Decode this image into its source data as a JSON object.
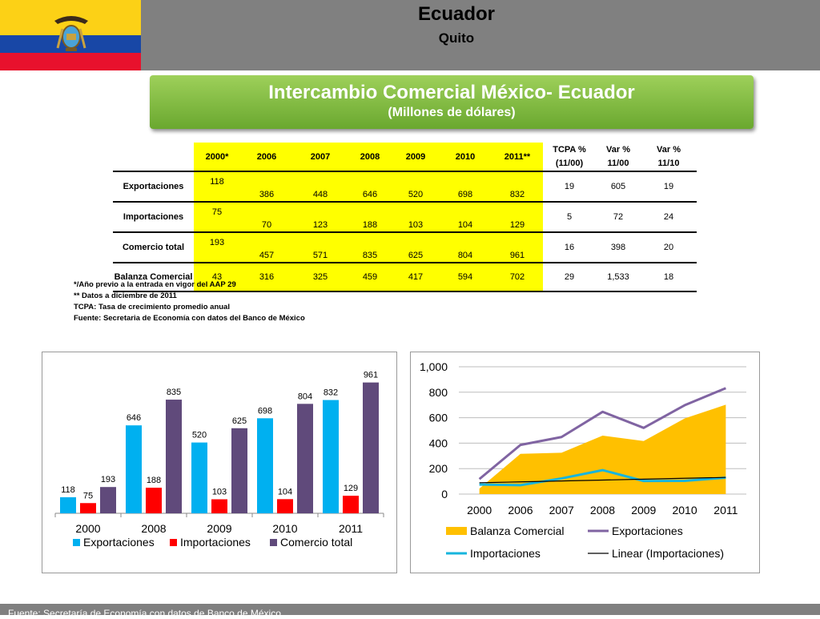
{
  "header": {
    "title": "Ecuador",
    "subtitle": "Quito",
    "flag_colors": [
      "#FCD116",
      "#1847A6",
      "#E8112D"
    ]
  },
  "banner": {
    "title": "Intercambio Comercial México- Ecuador",
    "subtitle": "(Millones de dólares)"
  },
  "table": {
    "years": [
      "2000*",
      "2006",
      "2007",
      "2008",
      "2009",
      "2010",
      "2011**"
    ],
    "rates": [
      {
        "line1": "TCPA %",
        "line2": "(11/00)"
      },
      {
        "line1": "Var %",
        "line2": "11/00"
      },
      {
        "line1": "Var %",
        "line2": "11/10"
      }
    ],
    "rows": [
      {
        "label": "Exportaciones",
        "values": [
          "118",
          "386",
          "448",
          "646",
          "520",
          "698",
          "832"
        ],
        "rates": [
          "19",
          "605",
          "19"
        ]
      },
      {
        "label": "Importaciones",
        "values": [
          "75",
          "70",
          "123",
          "188",
          "103",
          "104",
          "129"
        ],
        "rates": [
          "5",
          "72",
          "24"
        ]
      },
      {
        "label": "Comercio total",
        "values": [
          "193",
          "457",
          "571",
          "835",
          "625",
          "804",
          "961"
        ],
        "rates": [
          "16",
          "398",
          "20"
        ]
      },
      {
        "label": "Balanza Comercial",
        "values": [
          "43",
          "316",
          "325",
          "459",
          "417",
          "594",
          "702"
        ],
        "rates": [
          "29",
          "1,533",
          "18"
        ]
      }
    ]
  },
  "notes": [
    "*/Año previo a la entrada en vigor del AAP 29",
    "** Datos a diciembre de 2011",
    "TCPA: Tasa de crecimiento promedio anual",
    "Fuente: Secretaria de Economía con datos del Banco de México"
  ],
  "footer": "Fuente: Secretaría de Economía con datos de Banco de México",
  "chart_data": [
    {
      "type": "bar",
      "categories": [
        "2000",
        "2008",
        "2009",
        "2010",
        "2011"
      ],
      "series": [
        {
          "name": "Exportaciones",
          "color": "#00B0F0",
          "values": [
            118,
            646,
            520,
            698,
            832
          ]
        },
        {
          "name": "Importaciones",
          "color": "#FF0000",
          "values": [
            75,
            188,
            103,
            104,
            129
          ]
        },
        {
          "name": "Comercio total",
          "color": "#604A7B",
          "values": [
            193,
            835,
            625,
            804,
            961
          ]
        }
      ],
      "ylim": [
        0,
        1000
      ],
      "grid": false,
      "legend": "bottom"
    },
    {
      "type": "line",
      "categories": [
        "2000",
        "2006",
        "2007",
        "2008",
        "2009",
        "2010",
        "2011"
      ],
      "series": [
        {
          "name": "Balanza Comercial",
          "kind": "area",
          "color": "#FFC000",
          "values": [
            43,
            316,
            325,
            459,
            417,
            594,
            702
          ]
        },
        {
          "name": "Exportaciones",
          "kind": "line",
          "color": "#8064A2",
          "values": [
            118,
            386,
            448,
            646,
            520,
            698,
            832
          ]
        },
        {
          "name": "Importaciones",
          "kind": "line",
          "color": "#17B5DD",
          "values": [
            75,
            70,
            123,
            188,
            103,
            104,
            129
          ]
        },
        {
          "name": "Linear (Importaciones)",
          "kind": "trend",
          "color": "#000000",
          "values": [
            89,
            96,
            103,
            110,
            117,
            124,
            131
          ]
        }
      ],
      "yticks": [
        "0",
        "200",
        "400",
        "600",
        "800",
        "1,000"
      ],
      "ylim": [
        0,
        1000
      ],
      "grid": true,
      "legend": "bottom"
    }
  ]
}
